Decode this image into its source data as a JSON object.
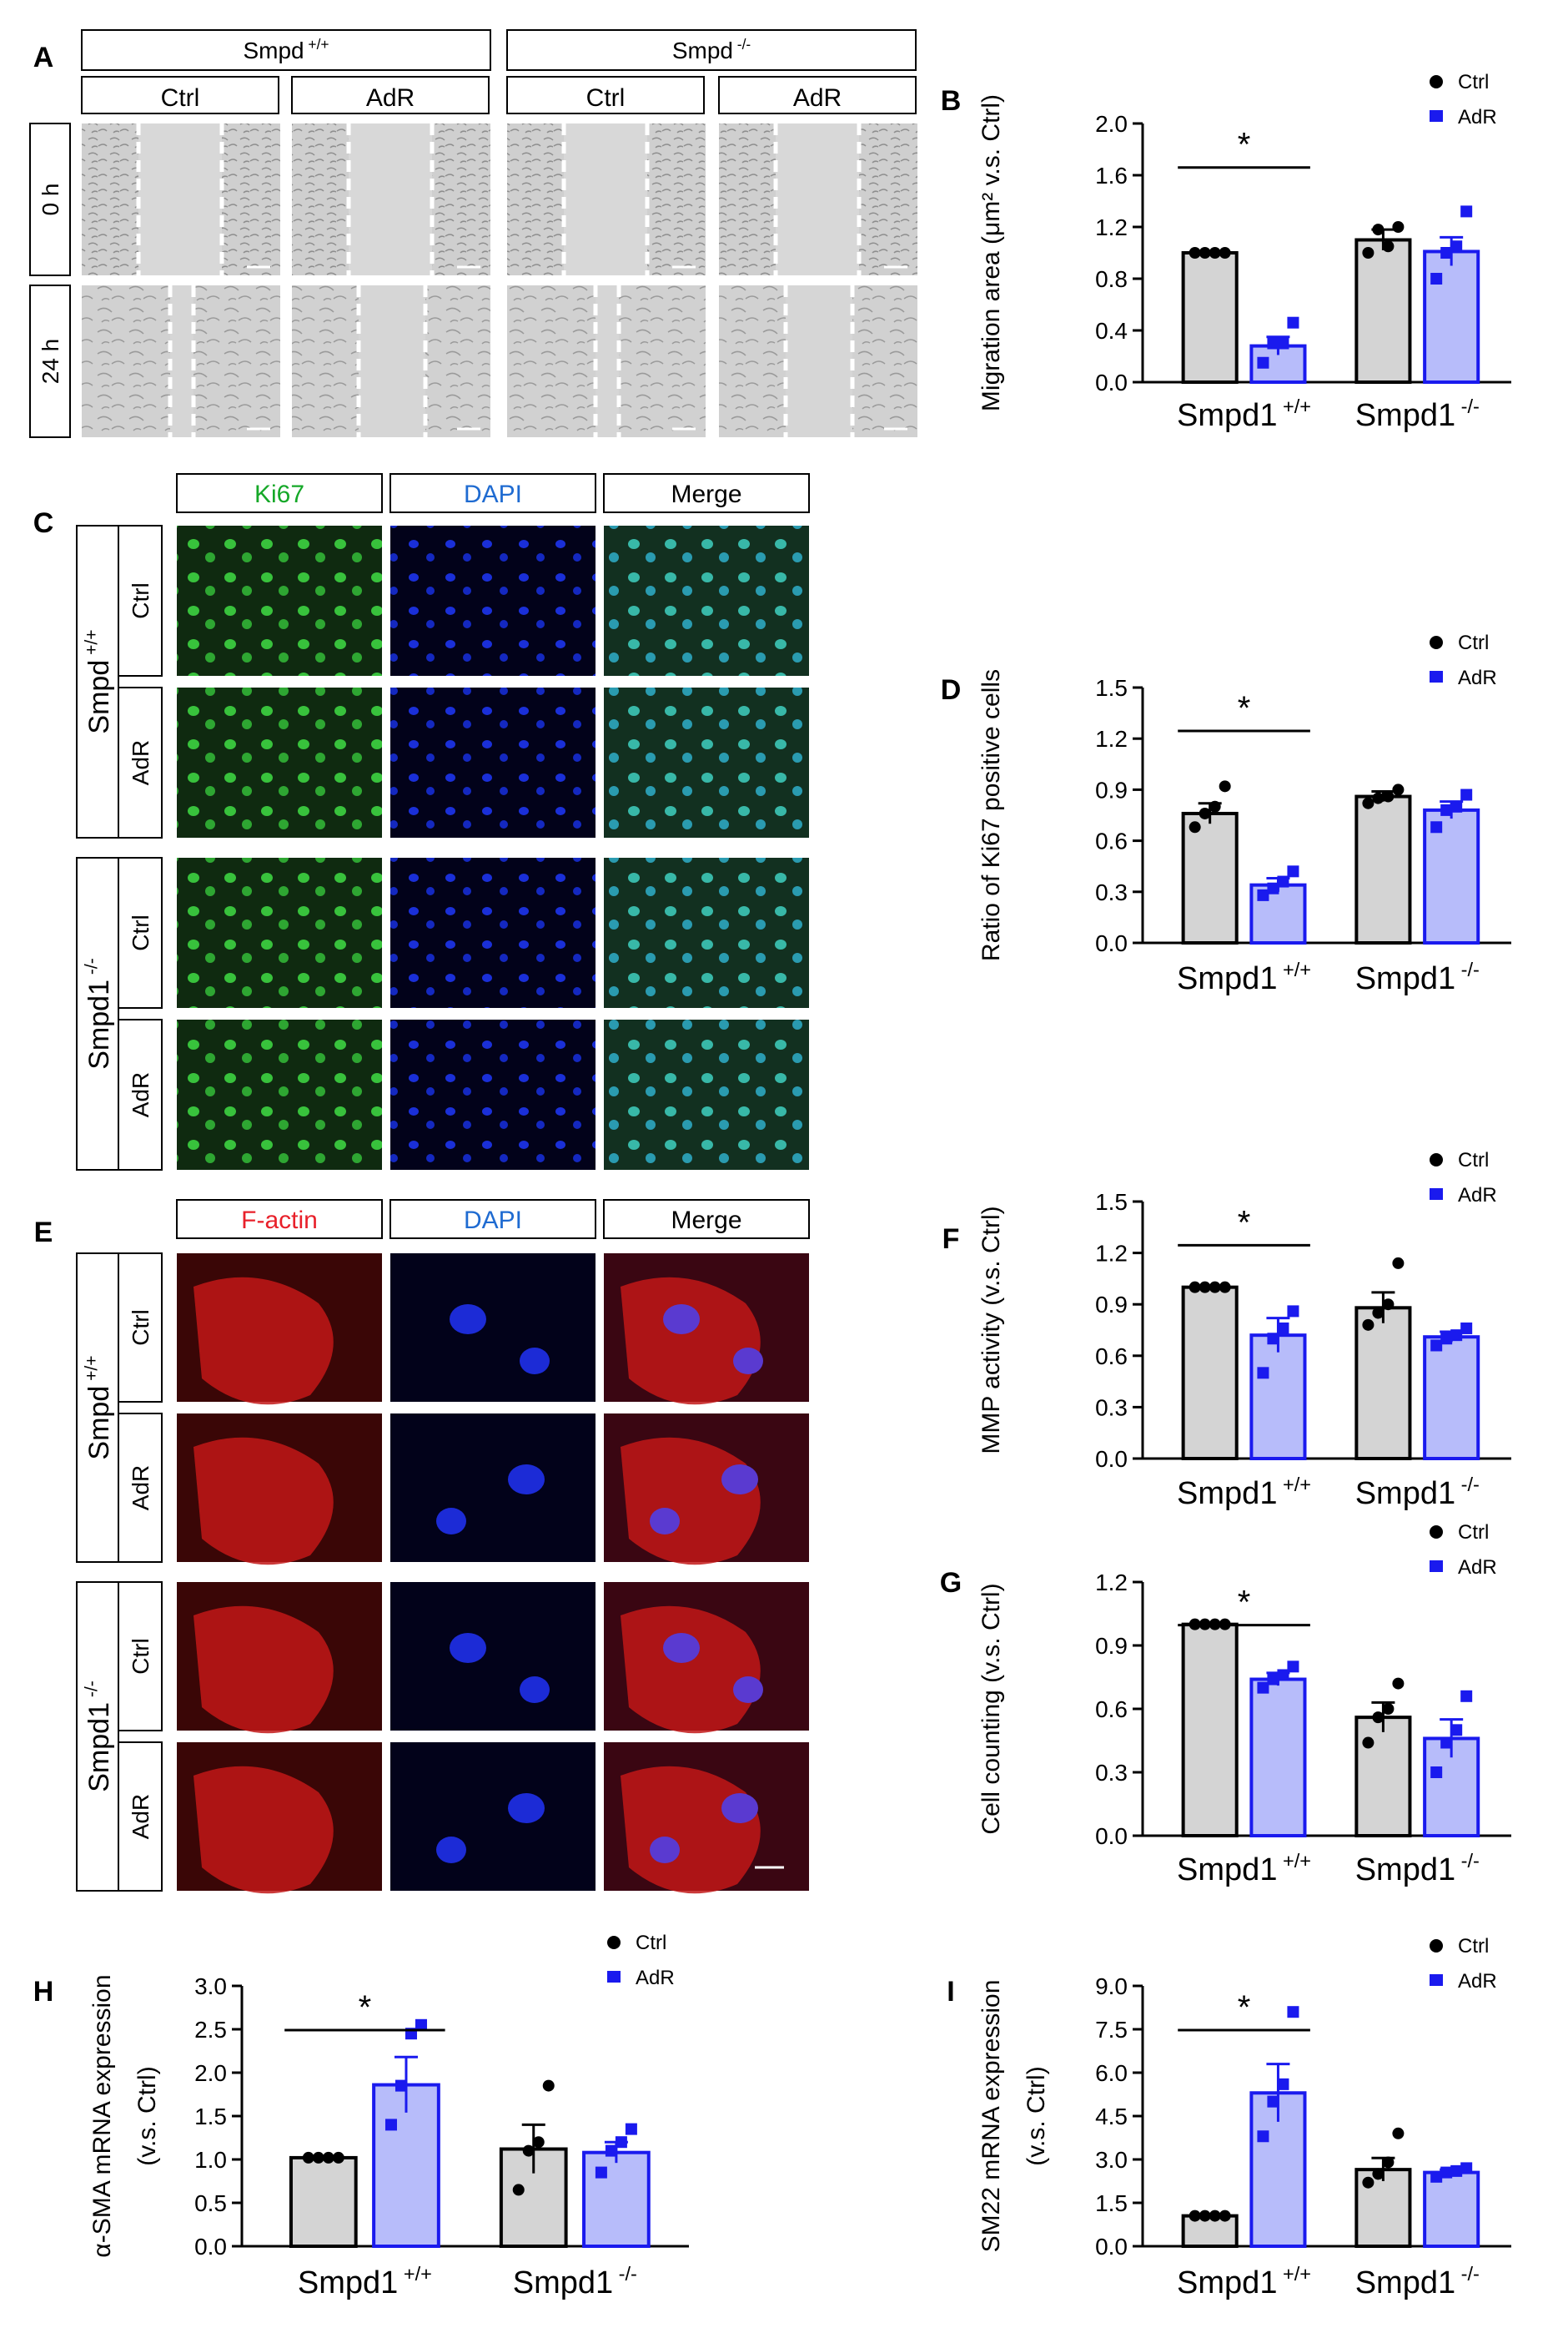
{
  "panel_letters": [
    "A",
    "B",
    "C",
    "D",
    "E",
    "F",
    "G",
    "H",
    "I"
  ],
  "panel_a": {
    "headers": [
      "Smpd",
      "Smpd"
    ],
    "header_sup": [
      "+/+",
      "-/-"
    ],
    "conditions": [
      "Ctrl",
      "AdR",
      "Ctrl",
      "AdR"
    ],
    "rows": [
      "0 h",
      "24 h"
    ]
  },
  "panel_c": {
    "channels": [
      "Ki67",
      "DAPI",
      "Merge"
    ],
    "channel_colors": [
      "#15a828",
      "#1f6bd1",
      "#000000"
    ],
    "groups": [
      {
        "name": "Smpd",
        "sup": "+/+"
      },
      {
        "name": "Smpd1",
        "sup": "-/-"
      }
    ],
    "conditions": [
      "Ctrl",
      "AdR",
      "Ctrl",
      "AdR"
    ]
  },
  "panel_e": {
    "channels": [
      "F-actin",
      "DAPI",
      "Merge"
    ],
    "channel_colors": [
      "#e8202a",
      "#1f6bd1",
      "#000000"
    ],
    "groups": [
      {
        "name": "Smpd",
        "sup": "+/+"
      },
      {
        "name": "Smpd1",
        "sup": "-/-"
      }
    ],
    "conditions": [
      "Ctrl",
      "AdR",
      "Ctrl",
      "AdR"
    ]
  },
  "colors": {
    "ctrl_fill": "#d4d4d4",
    "ctrl_stroke": "#000000",
    "adr_fill": "#b7bcfa",
    "adr_stroke": "#1a1aee"
  },
  "chart_data": [
    {
      "panel": "B",
      "type": "bar",
      "ylabel": "Migration area (μm² v.s. Ctrl)",
      "ylim": [
        0,
        2.0
      ],
      "yticks": [
        "0.0",
        "0.4",
        "0.8",
        "1.2",
        "1.6",
        "2.0"
      ],
      "categories": [
        {
          "name": "Smpd1",
          "sup": "+/+"
        },
        {
          "name": "Smpd1",
          "sup": "-/-"
        }
      ],
      "legend": [
        "Ctrl",
        "AdR"
      ],
      "series": [
        {
          "name": "Ctrl",
          "values": [
            1.0,
            1.1
          ],
          "errors": [
            0,
            0.08
          ],
          "points": [
            [
              1.0,
              1.0,
              1.0,
              1.0
            ],
            [
              1.0,
              1.18,
              1.05,
              1.2
            ]
          ]
        },
        {
          "name": "AdR",
          "values": [
            0.28,
            1.01
          ],
          "errors": [
            0.07,
            0.11
          ],
          "points": [
            [
              0.15,
              0.3,
              0.3,
              0.46
            ],
            [
              0.8,
              1.0,
              1.05,
              1.32
            ]
          ]
        }
      ],
      "significance": {
        "label": "*",
        "group": 0
      }
    },
    {
      "panel": "D",
      "type": "bar",
      "ylabel": "Ratio of Ki67 positive cells",
      "ylim": [
        0,
        1.5
      ],
      "yticks": [
        "0.0",
        "0.3",
        "0.6",
        "0.9",
        "1.2",
        "1.5"
      ],
      "categories": [
        {
          "name": "Smpd1",
          "sup": "+/+"
        },
        {
          "name": "Smpd1",
          "sup": "-/-"
        }
      ],
      "legend": [
        "Ctrl",
        "AdR"
      ],
      "series": [
        {
          "name": "Ctrl",
          "values": [
            0.76,
            0.86
          ],
          "errors": [
            0.06,
            0.03
          ],
          "points": [
            [
              0.68,
              0.76,
              0.8,
              0.92
            ],
            [
              0.82,
              0.85,
              0.86,
              0.9
            ]
          ]
        },
        {
          "name": "AdR",
          "values": [
            0.34,
            0.78
          ],
          "errors": [
            0.04,
            0.05
          ],
          "points": [
            [
              0.28,
              0.32,
              0.36,
              0.42
            ],
            [
              0.68,
              0.78,
              0.8,
              0.87
            ]
          ]
        }
      ],
      "significance": {
        "label": "*",
        "group": 0
      }
    },
    {
      "panel": "F",
      "type": "bar",
      "ylabel": "MMP activity (v.s. Ctrl)",
      "ylim": [
        0,
        1.5
      ],
      "yticks": [
        "0.0",
        "0.3",
        "0.6",
        "0.9",
        "1.2",
        "1.5"
      ],
      "categories": [
        {
          "name": "Smpd1",
          "sup": "+/+"
        },
        {
          "name": "Smpd1",
          "sup": "-/-"
        }
      ],
      "legend": [
        "Ctrl",
        "AdR"
      ],
      "series": [
        {
          "name": "Ctrl",
          "values": [
            1.0,
            0.88
          ],
          "errors": [
            0,
            0.09
          ],
          "points": [
            [
              1.0,
              1.0,
              1.0,
              1.0
            ],
            [
              0.78,
              0.85,
              0.9,
              1.14
            ]
          ]
        },
        {
          "name": "AdR",
          "values": [
            0.72,
            0.71
          ],
          "errors": [
            0.1,
            0.03
          ],
          "points": [
            [
              0.5,
              0.7,
              0.76,
              0.86
            ],
            [
              0.66,
              0.7,
              0.72,
              0.76
            ]
          ]
        }
      ],
      "significance": {
        "label": "*",
        "group": 0
      }
    },
    {
      "panel": "G",
      "type": "bar",
      "ylabel": "Cell counting (v.s. Ctrl)",
      "ylim": [
        0,
        1.2
      ],
      "yticks": [
        "0.0",
        "0.3",
        "0.6",
        "0.9",
        "1.2"
      ],
      "categories": [
        {
          "name": "Smpd1",
          "sup": "+/+"
        },
        {
          "name": "Smpd1",
          "sup": "-/-"
        }
      ],
      "legend": [
        "Ctrl",
        "AdR"
      ],
      "series": [
        {
          "name": "Ctrl",
          "values": [
            1.0,
            0.56
          ],
          "errors": [
            0,
            0.07
          ],
          "points": [
            [
              1.0,
              1.0,
              1.0,
              1.0
            ],
            [
              0.44,
              0.56,
              0.6,
              0.72
            ]
          ]
        },
        {
          "name": "AdR",
          "values": [
            0.74,
            0.46
          ],
          "errors": [
            0.03,
            0.09
          ],
          "points": [
            [
              0.7,
              0.74,
              0.76,
              0.8
            ],
            [
              0.3,
              0.44,
              0.5,
              0.66
            ]
          ]
        }
      ],
      "significance": {
        "label": "*",
        "group": 0
      }
    },
    {
      "panel": "H",
      "type": "bar",
      "ylabel": "α-SMA mRNA expression",
      "ylabel2": "(v.s. Ctrl)",
      "ylim": [
        0,
        3.0
      ],
      "yticks": [
        "0.0",
        "0.5",
        "1.0",
        "1.5",
        "2.0",
        "2.5",
        "3.0"
      ],
      "categories": [
        {
          "name": "Smpd1",
          "sup": "+/+"
        },
        {
          "name": "Smpd1",
          "sup": "-/-"
        }
      ],
      "legend": [
        "Ctrl",
        "AdR"
      ],
      "series": [
        {
          "name": "Ctrl",
          "values": [
            1.02,
            1.12
          ],
          "errors": [
            0,
            0.28
          ],
          "points": [
            [
              1.02,
              1.02,
              1.02,
              1.02
            ],
            [
              0.65,
              1.1,
              1.2,
              1.85
            ]
          ]
        },
        {
          "name": "AdR",
          "values": [
            1.86,
            1.08
          ],
          "errors": [
            0.32,
            0.12
          ],
          "points": [
            [
              1.4,
              1.85,
              2.45,
              2.55
            ],
            [
              0.85,
              1.1,
              1.2,
              1.35
            ]
          ]
        }
      ],
      "significance": {
        "label": "*",
        "group": 0
      }
    },
    {
      "panel": "I",
      "type": "bar",
      "ylabel": "SM22 mRNA expression",
      "ylabel2": "(v.s. Ctrl)",
      "ylim": [
        0,
        9.0
      ],
      "yticks": [
        "0.0",
        "1.5",
        "3.0",
        "4.5",
        "6.0",
        "7.5",
        "9.0"
      ],
      "categories": [
        {
          "name": "Smpd1",
          "sup": "+/+"
        },
        {
          "name": "Smpd1",
          "sup": "-/-"
        }
      ],
      "legend": [
        "Ctrl",
        "AdR"
      ],
      "series": [
        {
          "name": "Ctrl",
          "values": [
            1.05,
            2.65
          ],
          "errors": [
            0,
            0.4
          ],
          "points": [
            [
              1.05,
              1.05,
              1.05,
              1.05
            ],
            [
              2.2,
              2.5,
              2.9,
              3.9
            ]
          ]
        },
        {
          "name": "AdR",
          "values": [
            5.3,
            2.55
          ],
          "errors": [
            1.0,
            0.1
          ],
          "points": [
            [
              3.8,
              5.0,
              5.6,
              8.1
            ],
            [
              2.4,
              2.55,
              2.6,
              2.7
            ]
          ]
        }
      ],
      "significance": {
        "label": "*",
        "group": 0
      }
    }
  ]
}
